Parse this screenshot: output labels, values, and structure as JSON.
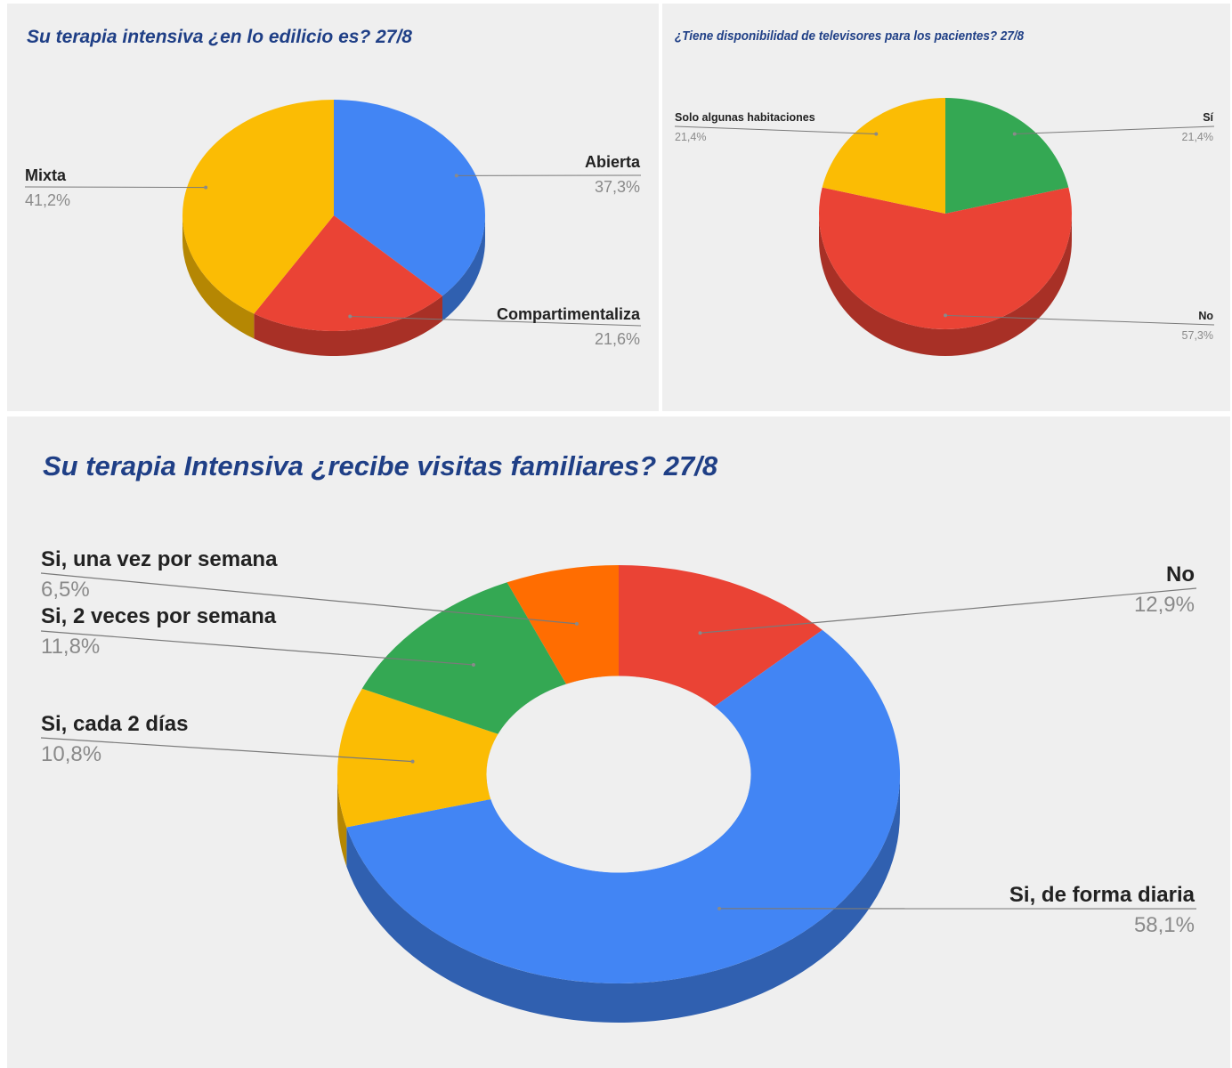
{
  "chart_data": [
    {
      "type": "pie",
      "title": "Su terapia intensiva ¿en lo edilicio es? 27/8",
      "categories": [
        "Abierta",
        "Compartimentaliza",
        "Mixta"
      ],
      "values": [
        37.3,
        21.6,
        41.2
      ],
      "value_labels": [
        "37,3%",
        "21,6%",
        "41,2%"
      ],
      "colors": [
        "#4285f4",
        "#ea4335",
        "#fbbc04"
      ],
      "style": "3d",
      "legend": "labels"
    },
    {
      "type": "pie",
      "title": "¿Tiene disponibilidad de televisores para los pacientes? 27/8",
      "categories": [
        "Sí",
        "No",
        "Solo algunas habitaciones"
      ],
      "values": [
        21.4,
        57.3,
        21.4
      ],
      "value_labels": [
        "21,4%",
        "57,3%",
        "21,4%"
      ],
      "colors": [
        "#34a853",
        "#ea4335",
        "#fbbc04"
      ],
      "style": "3d",
      "legend": "labels"
    },
    {
      "type": "pie",
      "donut": true,
      "title": "Su terapia Intensiva ¿recibe visitas familiares? 27/8",
      "categories": [
        "No",
        "Si, de forma diaria",
        "Si, cada 2 días",
        "Si, 2 veces por semana",
        "Si, una vez por semana"
      ],
      "values": [
        12.9,
        58.1,
        10.8,
        11.8,
        6.5
      ],
      "value_labels": [
        "12,9%",
        "58,1%",
        "10,8%",
        "11,8%",
        "6,5%"
      ],
      "colors": [
        "#ea4335",
        "#4285f4",
        "#fbbc04",
        "#34a853",
        "#ff6d01"
      ],
      "style": "3d",
      "legend": "labels"
    }
  ]
}
